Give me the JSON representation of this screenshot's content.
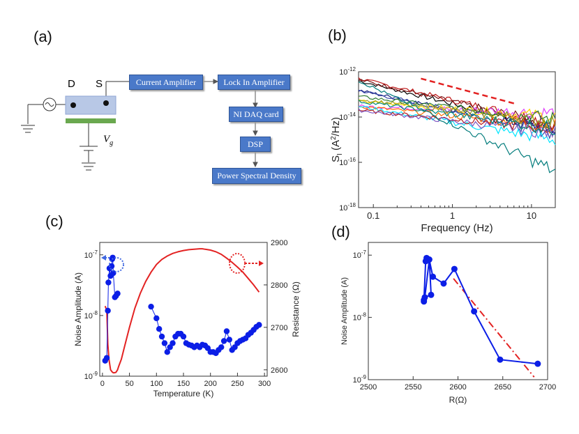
{
  "panels": {
    "a": "(a)",
    "b": "(b)",
    "c": "(c)",
    "d": "(d)"
  },
  "schematic": {
    "drain_label": "D",
    "source_label": "S",
    "gate_label": "V",
    "gate_subscript": "g",
    "boxes": [
      "Current Amplifier",
      "Lock In Amplifier",
      "NI DAQ card",
      "DSP",
      "Power Spectral Density"
    ],
    "colors": {
      "box": "#4a79c9",
      "device": "#b8c8e6",
      "gate": "#6aa84f"
    }
  },
  "chart_data": [
    {
      "panel": "b",
      "type": "line",
      "xlabel": "Frequency (Hz)",
      "ylabel_main": "S",
      "ylabel_sub": "I",
      "ylabel_rest": " (A",
      "ylabel_sup": "2",
      "ylabel_end": "/Hz)",
      "xscale": "log",
      "yscale": "log",
      "xlim": [
        0.065,
        20
      ],
      "ylim": [
        1e-18,
        1e-12
      ],
      "x_ticks": [
        {
          "value": 0.1,
          "label": "0.1"
        },
        {
          "value": 1,
          "label": "1"
        },
        {
          "value": 10,
          "label": "10"
        }
      ],
      "y_ticks": [
        {
          "value": 1e-12,
          "base": "10",
          "exp": "-12"
        },
        {
          "value": 1e-14,
          "base": "10",
          "exp": "-14"
        },
        {
          "value": 1e-16,
          "base": "10",
          "exp": "-16"
        },
        {
          "value": 1e-18,
          "base": "10",
          "exp": "-18"
        }
      ],
      "reference_line": {
        "style": "dashed",
        "color": "#e32222",
        "x": [
          0.4,
          6
        ],
        "y": [
          5e-13,
          4e-14
        ]
      },
      "series": [
        {
          "name": "s1",
          "color": "#000000",
          "start": 4e-13,
          "end": 3e-15
        },
        {
          "name": "s2",
          "color": "#c01818",
          "start": 5e-13,
          "end": 5e-15
        },
        {
          "name": "s3",
          "color": "#7a1414",
          "start": 4.5e-13,
          "end": 4e-15
        },
        {
          "name": "s4",
          "color": "#1a237e",
          "start": 1.5e-13,
          "end": 2.5e-15
        },
        {
          "name": "s5",
          "color": "#3949ab",
          "start": 1.5e-13,
          "end": 2e-15
        },
        {
          "name": "s6",
          "color": "#e040fb",
          "start": 3e-14,
          "end": 1.5e-14
        },
        {
          "name": "s7",
          "color": "#ffd600",
          "start": 5e-14,
          "end": 1e-14
        },
        {
          "name": "s8",
          "color": "#2e7d32",
          "start": 8e-14,
          "end": 8e-15
        },
        {
          "name": "s9",
          "color": "#ff6f00",
          "start": 3e-14,
          "end": 4e-15
        },
        {
          "name": "s10",
          "color": "#00e5ff",
          "start": 3e-14,
          "end": 1e-15
        },
        {
          "name": "s11",
          "color": "#b71c1c",
          "start": 2e-14,
          "end": 3e-15
        },
        {
          "name": "s12",
          "color": "#7e57c2",
          "start": 2e-14,
          "end": 2e-15
        },
        {
          "name": "s13",
          "color": "#9e9d24",
          "start": 6e-14,
          "end": 6e-15
        },
        {
          "name": "s14",
          "color": "#00897b",
          "start": 5e-14,
          "end": 3e-15
        },
        {
          "name": "s15",
          "color": "#007b7b",
          "start": 4e-13,
          "end": 4e-17
        }
      ]
    },
    {
      "panel": "c",
      "type": "scatter",
      "xlabel": "Temperature (K)",
      "ylabel": "Noise Amplitude (A)",
      "ylabel_right": "Resistance (Ω)",
      "xlim": [
        -5,
        305
      ],
      "ylim": [
        1e-09,
        1.6e-07
      ],
      "ylim_right": [
        2585,
        2900
      ],
      "x_ticks": [
        0,
        50,
        100,
        150,
        200,
        250,
        300
      ],
      "y_ticks": [
        {
          "value": 1e-09,
          "base": "10",
          "exp": "-9"
        },
        {
          "value": 1e-08,
          "base": "10",
          "exp": "-8"
        },
        {
          "value": 1e-07,
          "base": "10",
          "exp": "-7"
        }
      ],
      "y_ticks_right": [
        2600,
        2700,
        2800,
        2900
      ],
      "noise_segments": [
        {
          "x": [
            5,
            8,
            10,
            11,
            13,
            15,
            17,
            18,
            19,
            20,
            23,
            25,
            28
          ],
          "y": [
            1.8e-09,
            2e-09,
            1.2e-08,
            3.5e-08,
            6e-08,
            4.5e-08,
            6.5e-08,
            8.5e-08,
            9e-08,
            5e-08,
            2e-08,
            2.1e-08,
            2.3e-08
          ]
        },
        {
          "x": [
            90,
            100,
            105,
            110,
            115,
            120,
            125,
            130,
            135,
            140,
            145,
            150,
            155,
            160,
            165,
            170,
            175,
            180,
            185,
            190,
            195,
            200,
            205,
            210,
            215,
            220,
            225,
            230,
            235,
            240,
            245,
            250,
            255,
            260,
            265,
            270,
            275,
            280,
            285,
            290
          ],
          "y": [
            1.4e-08,
            9e-09,
            6e-09,
            4.5e-09,
            3.5e-09,
            2.5e-09,
            3e-09,
            3.5e-09,
            4.5e-09,
            5e-09,
            5e-09,
            4.5e-09,
            3.5e-09,
            3.3e-09,
            3.2e-09,
            3e-09,
            3.2e-09,
            3e-09,
            3.3e-09,
            3.2e-09,
            2.9e-09,
            2.5e-09,
            2.5e-09,
            2.4e-09,
            2.7e-09,
            3e-09,
            3.8e-09,
            5.5e-09,
            4e-09,
            2.7e-09,
            3e-09,
            3.5e-09,
            3.8e-09,
            4e-09,
            4.2e-09,
            4.8e-09,
            5.2e-09,
            5.8e-09,
            6.5e-09,
            7e-09
          ]
        }
      ],
      "resistance_curve": {
        "color": "#e32222",
        "x": [
          5,
          8,
          10,
          12,
          15,
          18,
          20,
          22,
          25,
          28,
          30,
          35,
          40,
          50,
          60,
          70,
          80,
          90,
          100,
          110,
          120,
          130,
          140,
          150,
          160,
          170,
          180,
          185,
          190,
          200,
          210,
          220,
          230,
          240,
          250,
          260,
          270,
          280,
          290
        ],
        "y": [
          2750,
          2740,
          2660,
          2625,
          2600,
          2595,
          2593,
          2593,
          2594,
          2600,
          2608,
          2625,
          2650,
          2700,
          2745,
          2780,
          2808,
          2830,
          2848,
          2860,
          2868,
          2874,
          2878,
          2881,
          2883,
          2884,
          2885,
          2885,
          2884,
          2882,
          2878,
          2872,
          2863,
          2853,
          2842,
          2830,
          2815,
          2800,
          2783
        ]
      },
      "annotations": [
        {
          "side": "left",
          "color": "#4169e1",
          "style": "dotted-circle-arrow"
        },
        {
          "side": "right",
          "color": "#e32222",
          "style": "dotted-circle-arrow"
        }
      ]
    },
    {
      "panel": "d",
      "type": "scatter",
      "xlabel": "R(Ω)",
      "ylabel": "Noise Amplitude (A)",
      "xlim": [
        2500,
        2700
      ],
      "ylim": [
        1e-09,
        1.6e-07
      ],
      "x_ticks": [
        2500,
        2550,
        2600,
        2650,
        2700
      ],
      "y_ticks": [
        {
          "value": 1e-09,
          "base": "10",
          "exp": "-9"
        },
        {
          "value": 1e-08,
          "base": "10",
          "exp": "-8"
        },
        {
          "value": 1e-07,
          "base": "10",
          "exp": "-7"
        }
      ],
      "points": {
        "x": [
          2562,
          2562,
          2563,
          2564,
          2568,
          2570,
          2565,
          2572,
          2584,
          2596,
          2618,
          2647,
          2689
        ],
        "y": [
          1.9e-08,
          1.8e-08,
          2.1e-08,
          8e-08,
          8.5e-08,
          2.3e-08,
          9e-08,
          4.5e-08,
          3.5e-08,
          6e-08,
          1.25e-08,
          2.1e-09,
          1.8e-09
        ]
      },
      "path_order": [
        1,
        0,
        3,
        6,
        4,
        2,
        5,
        4,
        7,
        8,
        9,
        10,
        11,
        12
      ],
      "fit_line": {
        "style": "dash-dot",
        "color": "#e32222",
        "x": [
          2595,
          2685
        ],
        "y": [
          4.2e-08,
          1.1e-09
        ]
      }
    }
  ],
  "colors": {
    "marker": "#0b1ee6",
    "red": "#e32222",
    "blue_arrow": "#4169e1"
  }
}
